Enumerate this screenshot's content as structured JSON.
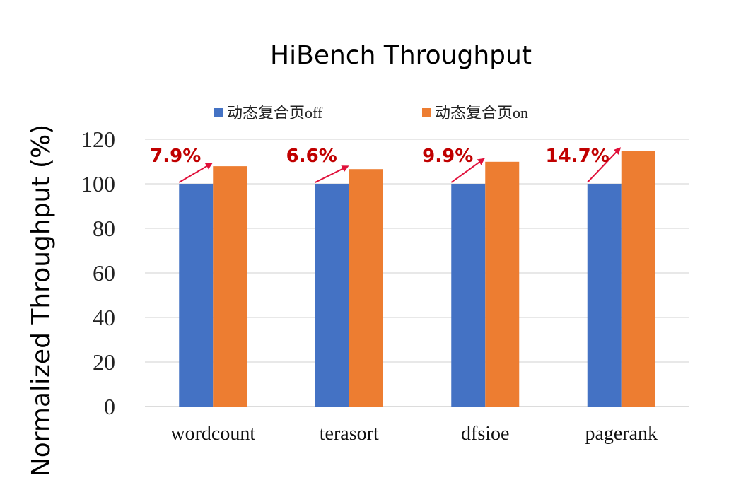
{
  "chart_data": {
    "type": "bar",
    "title": "HiBench Throughput",
    "ylabel": "Normalized Throughput (%)",
    "xlabel": "",
    "ylim": [
      0,
      120
    ],
    "yticks": [
      "0",
      "20",
      "40",
      "60",
      "80",
      "100",
      "120"
    ],
    "grid": true,
    "legend_position": "top",
    "categories": [
      "wordcount",
      "terasort",
      "dfsioe",
      "pagerank"
    ],
    "series": [
      {
        "name": "动态复合页off",
        "color": "#4472C4",
        "values": [
          100,
          100,
          100,
          100
        ]
      },
      {
        "name": "动态复合页on",
        "color": "#ED7D31",
        "values": [
          107.9,
          106.6,
          109.9,
          114.7
        ]
      }
    ],
    "annotations": [
      "7.9%",
      "6.6%",
      "9.9%",
      "14.7%"
    ],
    "annotation_color": "#C00000"
  }
}
